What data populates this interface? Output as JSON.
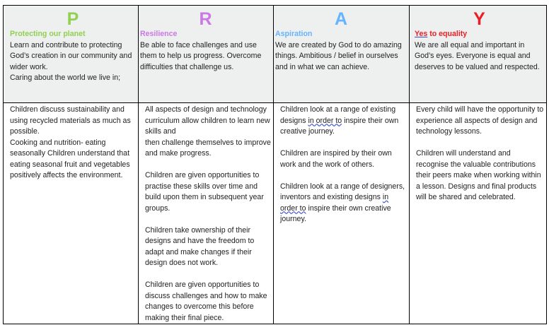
{
  "colors": {
    "P": "#92d050",
    "R": "#cc77e8",
    "A": "#66b3ff",
    "Y": "#ee1c25"
  },
  "header": [
    {
      "letter": "P",
      "title": "Protecting our planet",
      "text": [
        "Learn and contribute to protecting God’s creation in our community and wider work.",
        "Caring about the world we live in;"
      ]
    },
    {
      "letter": "R",
      "title": "Resilience",
      "text": [
        "Be able to face challenges and use them to help us progress. Overcome difficulties that challenge us."
      ]
    },
    {
      "letter": "A",
      "title": "Aspiration",
      "text": [
        "We are created by God to do amazing things. Ambitious / belief in ourselves and in what we can achieve."
      ]
    },
    {
      "letter": "Y",
      "title_yes": "Yes",
      "title_rest": " to equality",
      "text": [
        "We are all equal and important in God’s eyes. Everyone is equal and deserves to be valued and respected."
      ]
    }
  ],
  "body": [
    [
      "Children discuss sustainability and using recycled materials as much as possible.",
      "Cooking and nutrition- eating seasonally Children understand that eating seasonal fruit and vegetables positively affects the environment."
    ],
    [
      "All aspects of design and technology curriculum allow children to learn new skills and",
      "then challenge themselves to improve and make progress.",
      "",
      "Children are given opportunities to practise these skills over time and build upon them in subsequent year groups.",
      "",
      "Children take ownership of their designs and have the freedom to adapt and make changes if their design does not work.",
      "",
      "Children are given opportunities to discuss challenges and how to make changes to overcome this before making their final piece."
    ],
    [
      "Children look at a range of existing designs in order to inspire their own creative journey.",
      "",
      "Children are inspired by their own work and the work of others.",
      "",
      "Children look at a range of designers, inventors and existing designs in order to inspire their own creative journey."
    ],
    [
      "Every child will have the opportunity to experience all aspects of design and technology lessons.",
      "",
      "Children will understand and recognise the valuable contributions their peers make when working within a lesson. Designs and final products will be shared and celebrated."
    ]
  ]
}
